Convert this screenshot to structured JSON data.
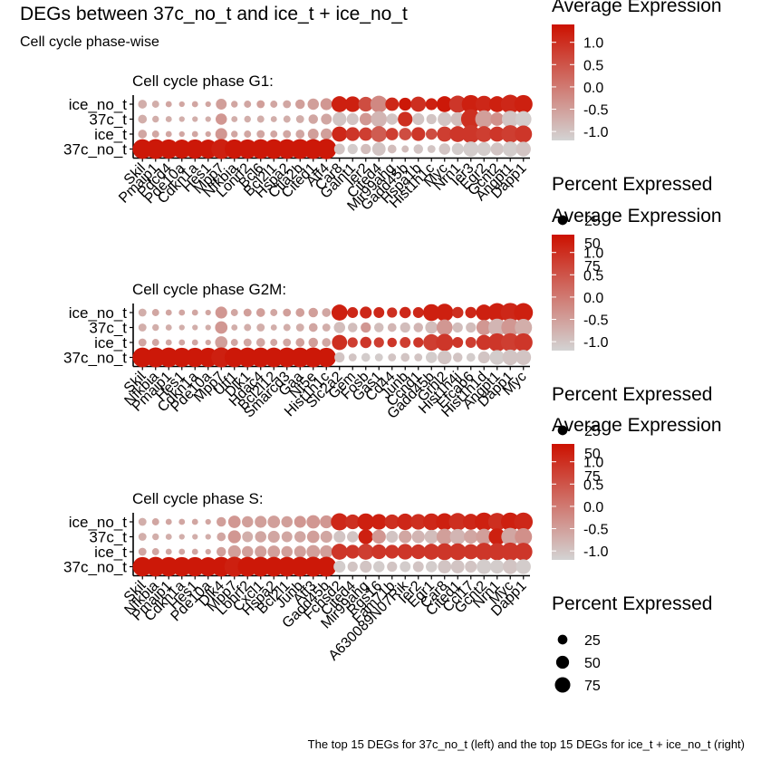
{
  "title": "DEGs between 37c_no_t and ice_t + ice_no_t",
  "subtitle": "Cell cycle phase-wise",
  "caption": "The top 15 DEGs for 37c_no_t (left) and the top 15 DEGs for ice_t + ice_no_t (right)",
  "colors": {
    "low": "#d3d3d3",
    "high": "#cc1100",
    "axis": "#000000"
  },
  "legend": {
    "color_title": "Average Expression",
    "color_ticks": [
      "1.0",
      "0.5",
      "0.0",
      "-0.5",
      "-1.0"
    ],
    "color_tick_values": [
      1.0,
      0.5,
      0.0,
      -0.5,
      -1.0
    ],
    "color_range": [
      -1.2,
      1.4
    ],
    "size_title": "Percent Expressed",
    "size_labels": [
      "25",
      "50",
      "75"
    ],
    "size_values": [
      25,
      50,
      75
    ]
  },
  "chart_data": [
    {
      "type": "dotplot",
      "title": "Cell cycle phase G1:",
      "groups": [
        "ice_no_t",
        "37c_t",
        "ice_t",
        "37c_no_t"
      ],
      "genes": [
        "Skil",
        "Pmaip1",
        "Pdcd4",
        "Pde10a",
        "Cdkn1a",
        "Hes1",
        "Mpp7",
        "Nfkbia",
        "Lonrf2",
        "Bcl6",
        "Bcl2l1",
        "Hspa2",
        "Ctla2b",
        "Cited1",
        "Atf4",
        "Car8",
        "Galnt1",
        "Ier2",
        "Cited4",
        "Mir99ahg",
        "Gadd45b",
        "Hspa1b",
        "Hist1h1c",
        "Myc",
        "Nrn1",
        "Ier3",
        "Egr2",
        "Gcnt2",
        "Angpt1",
        "Dapp1"
      ],
      "avg_expression": [
        [
          -0.7,
          -0.7,
          -0.6,
          -0.6,
          -0.6,
          -0.6,
          -0.5,
          -0.6,
          -0.6,
          -0.5,
          -0.6,
          -0.6,
          -0.5,
          -0.5,
          -0.4,
          1.2,
          1.2,
          0.6,
          -0.2,
          1.1,
          1.3,
          1.0,
          1.2,
          1.3,
          0.9,
          1.2,
          1.1,
          1.2,
          1.1,
          1.2
        ],
        [
          -0.7,
          -0.7,
          -0.7,
          -0.7,
          -0.7,
          -0.7,
          -0.4,
          -0.7,
          -0.7,
          -0.7,
          -0.7,
          -0.7,
          -0.7,
          -0.6,
          -0.6,
          -1.0,
          -1.0,
          -0.4,
          -0.8,
          -1.0,
          1.0,
          -1.0,
          -1.0,
          -1.0,
          -0.9,
          1.0,
          -0.5,
          -0.3,
          -1.0,
          -1.1
        ],
        [
          -0.6,
          -0.6,
          -0.6,
          -0.6,
          -0.6,
          -0.6,
          -0.4,
          -0.6,
          -0.6,
          -0.6,
          -0.6,
          -0.6,
          -0.6,
          -0.5,
          -0.5,
          1.1,
          0.9,
          0.8,
          0.4,
          0.8,
          0.6,
          0.9,
          0.6,
          0.8,
          0.9,
          0.9,
          0.8,
          0.9,
          0.8,
          0.9
        ],
        [
          1.3,
          1.3,
          1.3,
          1.3,
          1.3,
          1.3,
          1.2,
          1.3,
          1.3,
          1.3,
          1.3,
          1.3,
          1.3,
          1.3,
          1.3,
          -1.0,
          -1.1,
          -0.9,
          -1.0,
          -0.9,
          -0.9,
          -1.0,
          -1.0,
          -1.0,
          -1.1,
          -1.1,
          -1.1,
          -1.0,
          -1.1,
          -1.0
        ]
      ],
      "pct_expressed": [
        [
          12,
          8,
          6,
          5,
          6,
          5,
          18,
          7,
          8,
          10,
          8,
          10,
          14,
          20,
          22,
          40,
          38,
          34,
          45,
          28,
          26,
          36,
          22,
          40,
          46,
          52,
          44,
          40,
          56,
          52
        ],
        [
          12,
          7,
          6,
          5,
          5,
          5,
          20,
          6,
          7,
          8,
          6,
          8,
          10,
          14,
          18,
          30,
          22,
          24,
          40,
          20,
          34,
          22,
          16,
          30,
          30,
          60,
          48,
          28,
          44,
          40
        ],
        [
          12,
          8,
          6,
          5,
          6,
          5,
          22,
          7,
          8,
          10,
          8,
          10,
          12,
          18,
          20,
          36,
          30,
          28,
          40,
          24,
          24,
          30,
          20,
          36,
          40,
          52,
          40,
          36,
          50,
          46
        ],
        [
          60,
          62,
          58,
          56,
          58,
          56,
          62,
          58,
          58,
          60,
          60,
          60,
          62,
          62,
          64,
          18,
          16,
          16,
          28,
          12,
          8,
          14,
          10,
          20,
          22,
          36,
          30,
          26,
          36,
          34
        ]
      ]
    },
    {
      "type": "dotplot",
      "title": "Cell cycle phase G2M:",
      "groups": [
        "ice_no_t",
        "37c_t",
        "ice_t",
        "37c_no_t"
      ],
      "genes": [
        "Skil",
        "Nfkbia",
        "Pmaip1",
        "Hes1",
        "Cdkn1a",
        "Pde10a",
        "Mpp7",
        "Utf1",
        "Dlk1",
        "Hdac4",
        "Bcl2l12",
        "Smarcd3",
        "Gaa",
        "Nt5e",
        "Hist1h1c",
        "Slc2a2",
        "Gem",
        "Fosb",
        "Gas1",
        "Cd44",
        "Junb",
        "Ccnd1",
        "Gadd45b",
        "Grhl2",
        "Hist1h4j",
        "Efcab6",
        "Hist1h1d",
        "Angpt1",
        "Dapp1",
        "Myc"
      ],
      "avg_expression": [
        [
          -0.7,
          -0.6,
          -0.6,
          -0.6,
          -0.6,
          -0.6,
          -0.4,
          -0.6,
          -0.5,
          -0.5,
          -0.6,
          -0.5,
          -0.5,
          -0.5,
          -0.6,
          1.2,
          1.1,
          1.1,
          1.1,
          1.0,
          1.1,
          1.1,
          1.2,
          1.2,
          1.0,
          1.1,
          1.2,
          1.2,
          1.1,
          1.2
        ],
        [
          -0.7,
          -0.7,
          -0.7,
          -0.7,
          -0.7,
          -0.7,
          -0.4,
          -0.7,
          -0.7,
          -0.7,
          -0.7,
          -0.7,
          -0.7,
          -0.6,
          -0.7,
          -0.9,
          -0.9,
          -0.4,
          -0.9,
          -0.8,
          -0.9,
          -0.8,
          -0.9,
          -0.4,
          -0.9,
          -0.9,
          -0.4,
          -0.8,
          -0.4,
          -0.7
        ],
        [
          -0.6,
          -0.6,
          -0.6,
          -0.6,
          -0.6,
          -0.6,
          -0.5,
          -0.6,
          -0.6,
          -0.6,
          -0.6,
          -0.6,
          -0.5,
          -0.5,
          -0.6,
          1.0,
          0.8,
          0.9,
          0.8,
          0.9,
          0.8,
          0.9,
          0.8,
          0.9,
          0.9,
          0.8,
          0.9,
          0.9,
          0.8,
          0.9
        ],
        [
          1.3,
          1.3,
          1.3,
          1.3,
          1.3,
          1.3,
          1.2,
          1.3,
          1.3,
          1.3,
          1.3,
          1.3,
          1.3,
          1.3,
          1.3,
          -1.0,
          -1.0,
          -1.1,
          -1.1,
          -1.0,
          -1.0,
          -1.0,
          -1.1,
          -1.0,
          -1.0,
          -1.1,
          -1.0,
          -1.1,
          -1.0,
          -1.0
        ]
      ],
      "pct_expressed": [
        [
          10,
          8,
          6,
          6,
          6,
          5,
          22,
          8,
          10,
          12,
          8,
          10,
          12,
          14,
          12,
          40,
          18,
          22,
          18,
          16,
          20,
          18,
          44,
          48,
          20,
          20,
          40,
          56,
          58,
          56
        ],
        [
          10,
          7,
          6,
          5,
          5,
          5,
          24,
          6,
          8,
          10,
          6,
          8,
          10,
          12,
          10,
          20,
          14,
          16,
          14,
          12,
          16,
          14,
          24,
          40,
          16,
          16,
          36,
          48,
          50,
          46
        ],
        [
          10,
          8,
          6,
          6,
          6,
          5,
          24,
          8,
          10,
          12,
          8,
          10,
          12,
          14,
          12,
          36,
          16,
          20,
          16,
          14,
          18,
          16,
          42,
          46,
          18,
          18,
          36,
          52,
          54,
          52
        ],
        [
          60,
          62,
          60,
          58,
          58,
          58,
          62,
          60,
          60,
          60,
          60,
          60,
          60,
          62,
          58,
          16,
          10,
          12,
          10,
          10,
          12,
          10,
          20,
          30,
          14,
          12,
          22,
          34,
          38,
          36
        ]
      ]
    },
    {
      "type": "dotplot",
      "title": "Cell cycle phase S:",
      "groups": [
        "ice_no_t",
        "37c_t",
        "ice_t",
        "37c_no_t"
      ],
      "genes": [
        "Skil",
        "Nfkbia",
        "Pmaip1",
        "Cdkn1a",
        "Hes1",
        "Pde10a",
        "Dlk4",
        "Mpp7",
        "Lonrf2",
        "Cxcl1",
        "Hspa2",
        "Bcl2l1",
        "Junb",
        "Atf3",
        "Gadd45b",
        "Fchsd2",
        "Cited4",
        "Mir99ahg",
        "Rgs16",
        "Fam71b",
        "A630089N07Rik",
        "Ier2",
        "Egr1",
        "Car8",
        "Cited1",
        "Ccl17",
        "Gcnt2",
        "Nrn1",
        "Myc",
        "Dapp1"
      ],
      "avg_expression": [
        [
          -0.7,
          -0.6,
          -0.6,
          -0.6,
          -0.6,
          -0.6,
          -0.5,
          -0.4,
          -0.5,
          -0.5,
          -0.5,
          -0.5,
          -0.4,
          -0.4,
          -0.4,
          1.1,
          1.0,
          1.2,
          1.2,
          1.0,
          1.1,
          1.0,
          1.1,
          1.2,
          1.0,
          1.1,
          1.2,
          1.0,
          1.2,
          1.1
        ],
        [
          -0.7,
          -0.7,
          -0.7,
          -0.7,
          -0.7,
          -0.7,
          -0.6,
          -0.4,
          -0.7,
          -0.6,
          -0.6,
          -0.6,
          -0.6,
          -0.5,
          -0.6,
          -1.0,
          -1.0,
          1.2,
          -0.4,
          -1.0,
          -0.6,
          -0.8,
          -0.9,
          -0.5,
          -0.8,
          -0.6,
          -0.5,
          1.2,
          -0.6,
          -0.3
        ],
        [
          -0.6,
          -0.6,
          -0.6,
          -0.6,
          -0.6,
          -0.6,
          -0.5,
          -0.5,
          -0.5,
          -0.5,
          -0.5,
          -0.5,
          -0.5,
          -0.5,
          -0.5,
          0.9,
          0.9,
          0.8,
          0.9,
          0.9,
          0.9,
          0.9,
          0.9,
          0.9,
          0.9,
          0.9,
          0.9,
          0.9,
          0.9,
          0.9
        ],
        [
          1.3,
          1.3,
          1.3,
          1.3,
          1.3,
          1.3,
          1.3,
          1.2,
          1.3,
          1.3,
          1.3,
          1.3,
          1.3,
          1.3,
          1.3,
          -1.1,
          -1.0,
          -1.0,
          -1.1,
          -1.0,
          -1.1,
          -1.0,
          -1.1,
          -1.0,
          -1.0,
          -1.0,
          -1.1,
          -1.1,
          -1.0,
          -1.1
        ]
      ],
      "pct_expressed": [
        [
          10,
          8,
          6,
          6,
          6,
          5,
          14,
          24,
          20,
          22,
          24,
          20,
          22,
          28,
          26,
          46,
          34,
          44,
          38,
          34,
          42,
          38,
          44,
          46,
          48,
          40,
          54,
          50,
          54,
          54
        ],
        [
          10,
          7,
          6,
          5,
          5,
          5,
          12,
          26,
          18,
          20,
          22,
          18,
          20,
          24,
          22,
          22,
          20,
          34,
          30,
          22,
          26,
          26,
          30,
          40,
          38,
          30,
          40,
          44,
          50,
          46
        ],
        [
          10,
          8,
          6,
          6,
          6,
          5,
          14,
          26,
          20,
          22,
          24,
          20,
          22,
          28,
          26,
          40,
          30,
          40,
          34,
          30,
          38,
          34,
          40,
          44,
          44,
          36,
          50,
          46,
          52,
          50
        ],
        [
          58,
          60,
          58,
          58,
          58,
          56,
          60,
          62,
          60,
          60,
          60,
          60,
          60,
          62,
          62,
          22,
          16,
          22,
          20,
          16,
          18,
          18,
          20,
          28,
          28,
          22,
          34,
          30,
          34,
          34
        ]
      ]
    }
  ]
}
